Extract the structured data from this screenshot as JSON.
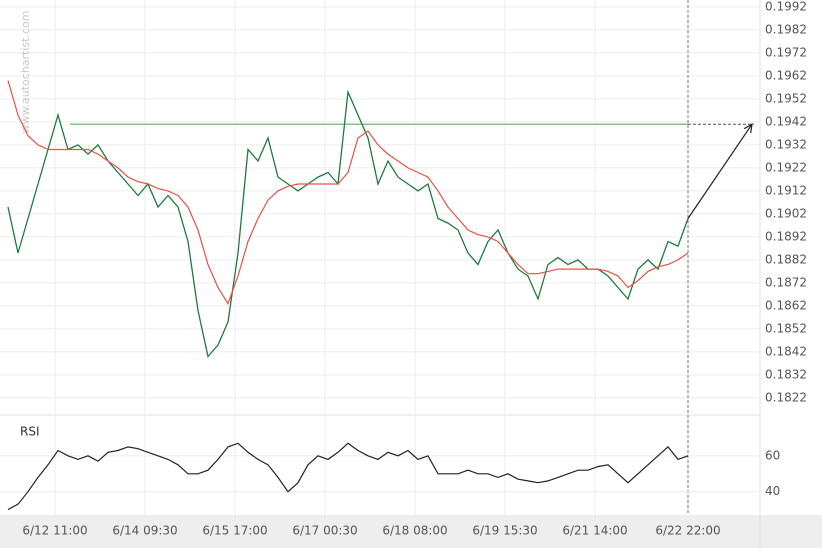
{
  "chart_data": [
    {
      "type": "line",
      "watermark": "www.autochartist.com",
      "x": [
        0,
        1,
        2,
        3,
        4,
        5,
        6,
        7,
        8,
        9,
        10,
        11,
        12,
        13,
        14,
        15,
        16,
        17,
        18,
        19,
        20,
        21,
        22,
        23,
        24,
        25,
        26,
        27,
        28,
        29,
        30,
        31,
        32,
        33,
        34,
        35,
        36,
        37,
        38,
        39,
        40,
        41,
        42,
        43,
        44,
        45,
        46,
        47,
        48,
        49,
        50,
        51,
        52,
        53,
        54,
        55,
        56,
        57,
        58,
        59,
        60,
        61,
        62,
        63,
        64,
        65,
        66,
        67,
        68
      ],
      "series": [
        {
          "color": "#1b7d3c",
          "values": [
            0.1905,
            0.1885,
            0.19,
            0.1915,
            0.193,
            0.1945,
            0.193,
            0.1932,
            0.1928,
            0.1932,
            0.1925,
            0.192,
            0.1915,
            0.191,
            0.1915,
            0.1905,
            0.191,
            0.1905,
            0.189,
            0.186,
            0.184,
            0.1845,
            0.1855,
            0.1885,
            0.193,
            0.1925,
            0.1935,
            0.1918,
            0.1915,
            0.1912,
            0.1915,
            0.1918,
            0.192,
            0.1915,
            0.1955,
            0.1945,
            0.1935,
            0.1915,
            0.1925,
            0.1918,
            0.1915,
            0.1912,
            0.1915,
            0.19,
            0.1898,
            0.1895,
            0.1885,
            0.188,
            0.189,
            0.1895,
            0.1885,
            0.1878,
            0.1875,
            0.1865,
            0.188,
            0.1883,
            0.188,
            0.1882,
            0.1878,
            0.1878,
            0.1875,
            0.187,
            0.1865,
            0.1878,
            0.1882,
            0.1878,
            0.189,
            0.1888,
            0.19
          ]
        },
        {
          "color": "#e8504a",
          "values": [
            0.196,
            0.1945,
            0.1936,
            0.1932,
            0.193,
            0.193,
            0.193,
            0.193,
            0.193,
            0.1928,
            0.1925,
            0.1922,
            0.1918,
            0.1916,
            0.1915,
            0.1913,
            0.1912,
            0.191,
            0.1905,
            0.1895,
            0.188,
            0.187,
            0.1863,
            0.1875,
            0.189,
            0.19,
            0.1908,
            0.1912,
            0.1914,
            0.1915,
            0.1915,
            0.1915,
            0.1915,
            0.1915,
            0.192,
            0.1935,
            0.1938,
            0.1932,
            0.1928,
            0.1925,
            0.1922,
            0.192,
            0.1918,
            0.1912,
            0.1905,
            0.19,
            0.1895,
            0.1893,
            0.1892,
            0.189,
            0.1885,
            0.188,
            0.1876,
            0.1876,
            0.1877,
            0.1878,
            0.1878,
            0.1878,
            0.1878,
            0.1878,
            0.1877,
            0.1875,
            0.187,
            0.1873,
            0.1877,
            0.1879,
            0.188,
            0.1882,
            0.1885
          ]
        }
      ],
      "resistance": {
        "value": 0.1941,
        "x_start": 6.2,
        "color": "#7fc48a"
      },
      "forecast": {
        "x": [
          68,
          74.4
        ],
        "values": [
          0.19,
          0.1941
        ]
      },
      "xlim": [
        -0.8,
        75.2
      ],
      "xticks": [
        {
          "value": 4.7,
          "label": "6/12 11:00"
        },
        {
          "value": 13.7,
          "label": "6/14 09:30"
        },
        {
          "value": 22.7,
          "label": "6/15 17:00"
        },
        {
          "value": 31.7,
          "label": "6/17 00:30"
        },
        {
          "value": 40.7,
          "label": "6/18 08:00"
        },
        {
          "value": 49.7,
          "label": "6/19 15:30"
        },
        {
          "value": 58.7,
          "label": "6/21 14:00"
        },
        {
          "value": 68,
          "label": "6/22 22:00"
        }
      ],
      "ylim": [
        0.1815,
        0.1995
      ],
      "yticks": [
        0.1822,
        0.1832,
        0.1842,
        0.1852,
        0.1862,
        0.1872,
        0.1882,
        0.1892,
        0.1902,
        0.1912,
        0.1922,
        0.1932,
        0.1942,
        0.1952,
        0.1962,
        0.1972,
        0.1982,
        0.1992
      ],
      "grid": true
    },
    {
      "type": "line",
      "title": "RSI",
      "x": [
        0,
        1,
        2,
        3,
        4,
        5,
        6,
        7,
        8,
        9,
        10,
        11,
        12,
        13,
        14,
        15,
        16,
        17,
        18,
        19,
        20,
        21,
        22,
        23,
        24,
        25,
        26,
        27,
        28,
        29,
        30,
        31,
        32,
        33,
        34,
        35,
        36,
        37,
        38,
        39,
        40,
        41,
        42,
        43,
        44,
        45,
        46,
        47,
        48,
        49,
        50,
        51,
        52,
        53,
        54,
        55,
        56,
        57,
        58,
        59,
        60,
        61,
        62,
        63,
        64,
        65,
        66,
        67,
        68
      ],
      "series": [
        {
          "color": "#222222",
          "values": [
            30,
            33,
            40,
            48,
            55,
            63,
            60,
            58,
            60,
            57,
            62,
            63,
            65,
            64,
            62,
            60,
            58,
            55,
            50,
            50,
            52,
            58,
            65,
            67,
            62,
            58,
            55,
            48,
            40,
            45,
            55,
            60,
            58,
            62,
            67,
            63,
            60,
            58,
            62,
            60,
            63,
            58,
            60,
            50,
            50,
            50,
            52,
            50,
            50,
            48,
            50,
            47,
            46,
            45,
            46,
            48,
            50,
            52,
            52,
            54,
            55,
            50,
            45,
            50,
            55,
            60,
            65,
            58,
            60
          ]
        }
      ],
      "xlim": [
        -0.8,
        75.2
      ],
      "ylim": [
        27,
        80
      ],
      "yticks": [
        40,
        60
      ],
      "grid": true
    }
  ]
}
